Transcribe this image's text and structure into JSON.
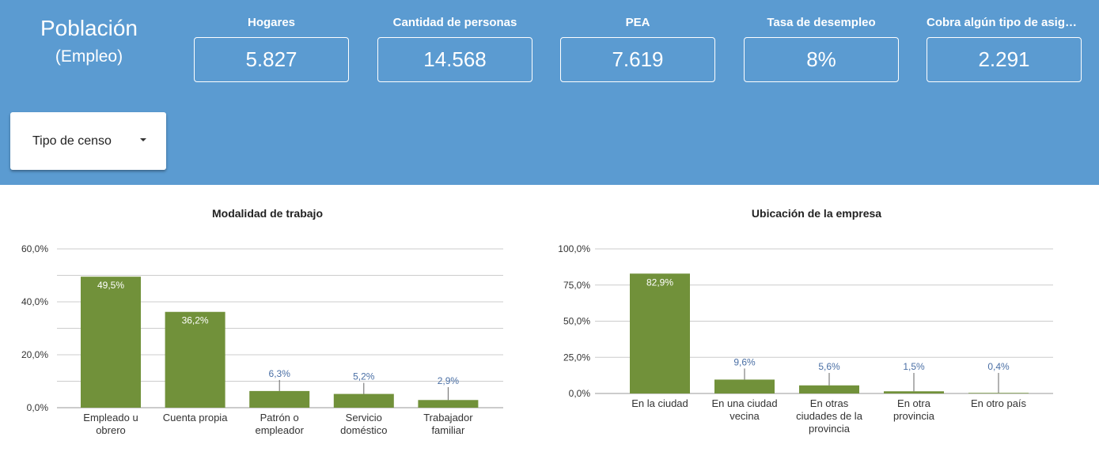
{
  "header": {
    "title": "Población",
    "subtitle": "(Empleo)"
  },
  "kpis": [
    {
      "label": "Hogares",
      "value": "5.827"
    },
    {
      "label": "Cantidad de personas",
      "value": "14.568"
    },
    {
      "label": "PEA",
      "value": "7.619"
    },
    {
      "label": "Tasa de desempleo",
      "value": "8%"
    },
    {
      "label": "Cobra algún tipo de asignación",
      "value": "2.291"
    }
  ],
  "filter": {
    "label": "Tipo de censo"
  },
  "colors": {
    "header": "#5b9bd1",
    "bar": "#71913a",
    "outside_label": "#4a6fa5"
  },
  "chart_data": [
    {
      "type": "bar",
      "title": "Modalidad de trabajo",
      "categories": [
        [
          "Empleado u",
          "obrero"
        ],
        [
          "Cuenta propia"
        ],
        [
          "Patrón o",
          "empleador"
        ],
        [
          "Servicio",
          "doméstico"
        ],
        [
          "Trabajador",
          "familiar"
        ]
      ],
      "values": [
        49.5,
        36.2,
        6.3,
        5.2,
        2.9
      ],
      "value_labels": [
        "49,5%",
        "36,2%",
        "6,3%",
        "5,2%",
        "2,9%"
      ],
      "ylim": [
        0,
        60
      ],
      "yticks": [
        "0,0%",
        "20,0%",
        "40,0%",
        "60,0%"
      ],
      "ytick_values": [
        0,
        20,
        40,
        60
      ],
      "grid_step": 10
    },
    {
      "type": "bar",
      "title": "Ubicación de la empresa",
      "categories": [
        [
          "En la ciudad"
        ],
        [
          "En una ciudad",
          "vecina"
        ],
        [
          "En otras",
          "ciudades de la",
          "provincia"
        ],
        [
          "En otra",
          "provincia"
        ],
        [
          "En otro país"
        ]
      ],
      "values": [
        82.9,
        9.6,
        5.6,
        1.5,
        0.4
      ],
      "value_labels": [
        "82,9%",
        "9,6%",
        "5,6%",
        "1,5%",
        "0,4%"
      ],
      "ylim": [
        0,
        100
      ],
      "yticks": [
        "0,0%",
        "25,0%",
        "50,0%",
        "75,0%",
        "100,0%"
      ],
      "ytick_values": [
        0,
        25,
        50,
        75,
        100
      ],
      "grid_step": 25
    }
  ]
}
